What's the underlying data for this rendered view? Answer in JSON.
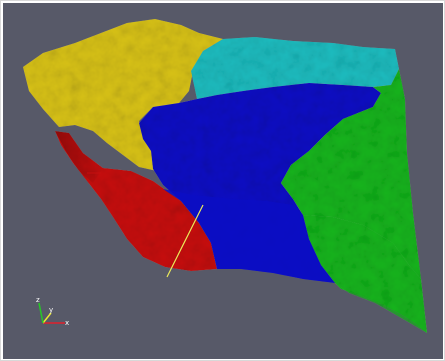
{
  "viewport": {
    "background_color": "#575968",
    "regions": [
      {
        "name": "region-yellow",
        "color": "#d8c218"
      },
      {
        "name": "region-cyan",
        "color": "#1cbcbf"
      },
      {
        "name": "region-blue",
        "color": "#0c0ec4"
      },
      {
        "name": "region-red",
        "color": "#c70e0e"
      },
      {
        "name": "region-green",
        "color": "#14b41c"
      }
    ],
    "probe_line_color": "#ecec5a"
  },
  "orientation_axes": {
    "x_label": "x",
    "y_label": "y",
    "z_label": "z",
    "x_color": "#e0202a",
    "y_color": "#e8e832",
    "z_color": "#26c826"
  }
}
